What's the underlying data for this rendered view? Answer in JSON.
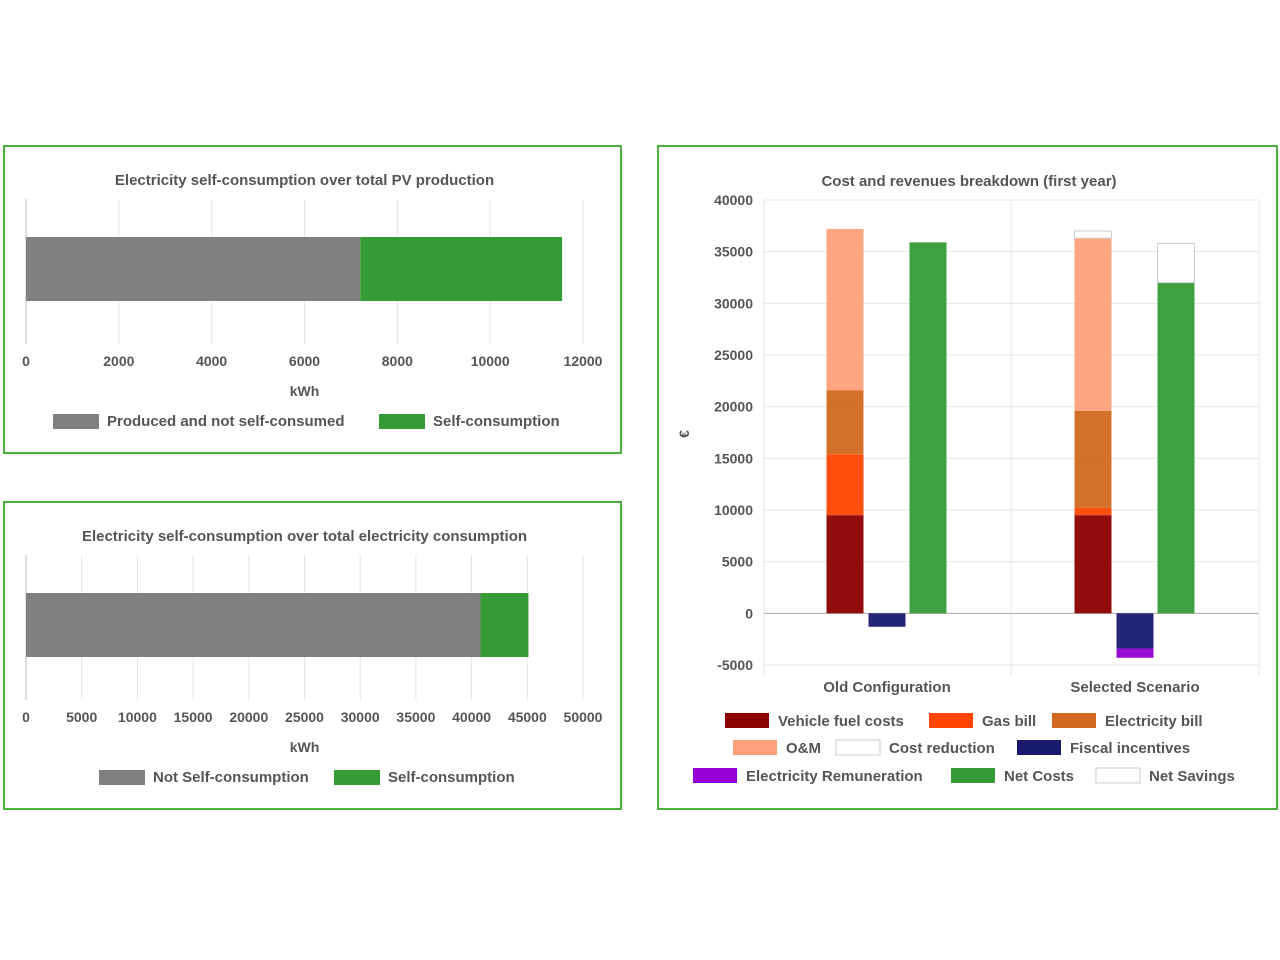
{
  "chart_data": [
    {
      "type": "bar",
      "orientation": "horizontal",
      "stacked": true,
      "title": "Electricity self-consumption over total PV production",
      "xlabel": "kWh",
      "xlim": [
        0,
        12000
      ],
      "x_ticks": [
        "0",
        "2000",
        "4000",
        "6000",
        "8000",
        "10000",
        "12000"
      ],
      "grid": true,
      "legend_position": "bottom",
      "series": [
        {
          "name": "Produced and not self-consumed",
          "values": [
            7200
          ],
          "color": "#808080"
        },
        {
          "name": "Self-consumption",
          "values": [
            4350
          ],
          "color": "#359b35"
        }
      ]
    },
    {
      "type": "bar",
      "orientation": "horizontal",
      "stacked": true,
      "title": "Electricity self-consumption over total electricity consumption",
      "xlabel": "kWh",
      "xlim": [
        0,
        50000
      ],
      "x_ticks": [
        "0",
        "5000",
        "10000",
        "15000",
        "20000",
        "25000",
        "30000",
        "35000",
        "40000",
        "45000",
        "50000"
      ],
      "grid": true,
      "legend_position": "bottom",
      "series": [
        {
          "name": "Not Self-consumption",
          "values": [
            40800
          ],
          "color": "#808080"
        },
        {
          "name": "Self-consumption",
          "values": [
            4300
          ],
          "color": "#359b35"
        }
      ]
    },
    {
      "type": "bar",
      "orientation": "vertical",
      "stacked": true,
      "title": "Cost and revenues breakdown (first year)",
      "ylabel": "€",
      "ylim": [
        -5000,
        40000
      ],
      "y_ticks": [
        "40000",
        "35000",
        "30000",
        "25000",
        "20000",
        "15000",
        "10000",
        "5000",
        "0",
        "-5000"
      ],
      "categories": [
        "Old Configuration",
        "Selected Scenario"
      ],
      "grid": true,
      "legend_position": "bottom",
      "series": [
        {
          "name": "Vehicle fuel costs",
          "stack": "costs",
          "values": [
            9500,
            9500
          ],
          "color": "#8b0000"
        },
        {
          "name": "Gas bill",
          "stack": "costs",
          "values": [
            5900,
            700
          ],
          "color": "#ff4500"
        },
        {
          "name": "Electricity bill",
          "stack": "costs",
          "values": [
            6200,
            9400
          ],
          "color": "#d2691e"
        },
        {
          "name": "O&M",
          "stack": "costs",
          "values": [
            15600,
            16700
          ],
          "color": "#ffa07a"
        },
        {
          "name": "Cost reduction",
          "stack": "costs",
          "values": [
            0,
            700
          ],
          "color": "#ffffff"
        },
        {
          "name": "Fiscal incentives",
          "stack": "revenues",
          "values": [
            -1300,
            -3400
          ],
          "color": "#191970"
        },
        {
          "name": "Electricity Remuneration",
          "stack": "revenues",
          "values": [
            0,
            -900
          ],
          "color": "#9400d3"
        },
        {
          "name": "Net  Costs",
          "stack": "net",
          "values": [
            35900,
            32000
          ],
          "color": "#359b35"
        },
        {
          "name": "Net Savings",
          "stack": "net",
          "values": [
            0,
            3800
          ],
          "color": "#ffffff"
        }
      ]
    }
  ]
}
